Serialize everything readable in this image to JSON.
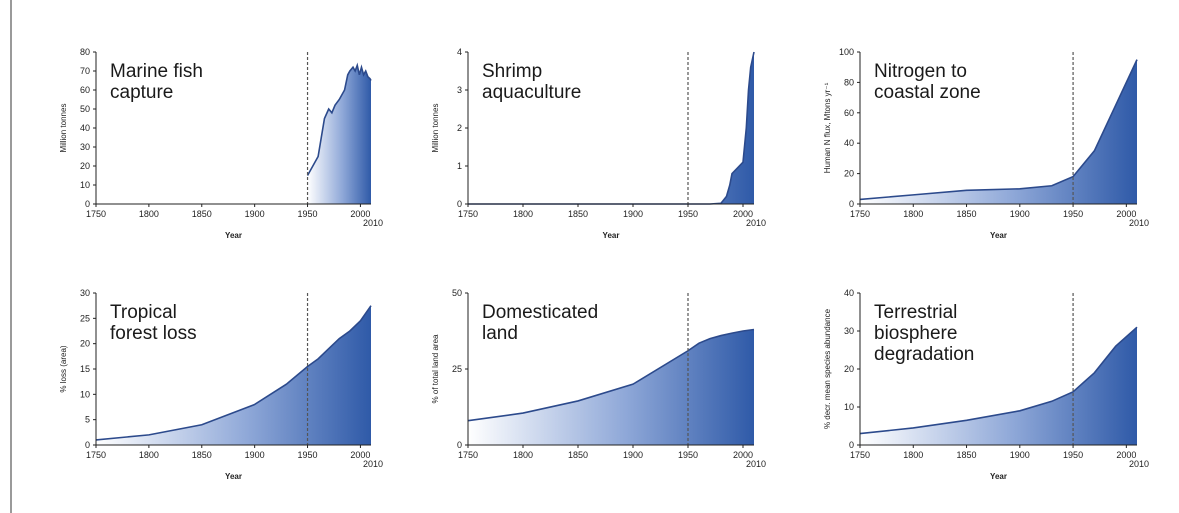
{
  "chart_data": [
    {
      "type": "area",
      "title": "Marine fish capture",
      "title_lines": [
        "Marine fish",
        "capture"
      ],
      "xlabel": "Year",
      "ylabel": "Million tonnes",
      "xlim": [
        1750,
        2010
      ],
      "ylim": [
        0,
        80
      ],
      "xticks": [
        "1750",
        "1800",
        "1850",
        "1900",
        "1950",
        "2000"
      ],
      "end_tick": "2010",
      "yticks": [
        "0",
        "10",
        "20",
        "30",
        "40",
        "50",
        "60",
        "70",
        "80"
      ],
      "marker_line_year": 1950,
      "x": [
        1950,
        1955,
        1960,
        1963,
        1966,
        1970,
        1973,
        1976,
        1980,
        1985,
        1988,
        1990,
        1993,
        1995,
        1997,
        1999,
        2001,
        2003,
        2005,
        2007,
        2009,
        2010
      ],
      "values": [
        15,
        20,
        25,
        35,
        45,
        50,
        48,
        52,
        55,
        60,
        68,
        70,
        72,
        70,
        73,
        68,
        72,
        68,
        70,
        67,
        66,
        65
      ],
      "line_color": "#2c4a8c",
      "fill_color": "#2f5aa8"
    },
    {
      "type": "area",
      "title": "Shrimp aquaculture",
      "title_lines": [
        "Shrimp",
        "aquaculture"
      ],
      "xlabel": "Year",
      "ylabel": "Million tonnes",
      "xlim": [
        1750,
        2010
      ],
      "ylim": [
        0,
        4
      ],
      "xticks": [
        "1750",
        "1800",
        "1850",
        "1900",
        "1950",
        "2000"
      ],
      "end_tick": "2010",
      "yticks": [
        "0",
        "1",
        "2",
        "3",
        "4"
      ],
      "marker_line_year": 1950,
      "x": [
        1750,
        1970,
        1980,
        1985,
        1988,
        1990,
        1995,
        2000,
        2003,
        2005,
        2007,
        2010
      ],
      "values": [
        0,
        0,
        0.02,
        0.2,
        0.5,
        0.8,
        0.95,
        1.1,
        2.0,
        3.0,
        3.6,
        4.0
      ],
      "line_color": "#2c4a8c",
      "fill_color": "#2f5aa8"
    },
    {
      "type": "area",
      "title": "Nitrogen to coastal zone",
      "title_lines": [
        "Nitrogen to",
        "coastal zone"
      ],
      "xlabel": "Year",
      "ylabel": "Human N flux, Mtons yr⁻¹",
      "xlim": [
        1750,
        2010
      ],
      "ylim": [
        0,
        100
      ],
      "xticks": [
        "1750",
        "1800",
        "1850",
        "1900",
        "1950",
        "2000"
      ],
      "end_tick": "2010",
      "yticks": [
        "0",
        "20",
        "40",
        "60",
        "80",
        "100"
      ],
      "marker_line_year": 1950,
      "x": [
        1750,
        1800,
        1850,
        1900,
        1930,
        1950,
        1970,
        1990,
        2010
      ],
      "values": [
        3,
        6,
        9,
        10,
        12,
        18,
        35,
        65,
        95
      ],
      "line_color": "#2c4a8c",
      "fill_color": "#2f5aa8"
    },
    {
      "type": "area",
      "title": "Tropical forest loss",
      "title_lines": [
        "Tropical",
        "forest loss"
      ],
      "xlabel": "Year",
      "ylabel": "% loss (area)",
      "xlim": [
        1750,
        2010
      ],
      "ylim": [
        0,
        30
      ],
      "xticks": [
        "1750",
        "1800",
        "1850",
        "1900",
        "1950",
        "2000"
      ],
      "end_tick": "2010",
      "yticks": [
        "0",
        "5",
        "10",
        "15",
        "20",
        "25",
        "30"
      ],
      "marker_line_year": 1950,
      "x": [
        1750,
        1800,
        1850,
        1900,
        1930,
        1950,
        1960,
        1970,
        1980,
        1990,
        2000,
        2010
      ],
      "values": [
        1,
        2,
        4,
        8,
        12,
        15.5,
        17,
        19,
        21,
        22.5,
        24.5,
        27.5
      ],
      "line_color": "#2c4a8c",
      "fill_color": "#2f5aa8"
    },
    {
      "type": "area",
      "title": "Domesticated land",
      "title_lines": [
        "Domesticated",
        "land"
      ],
      "xlabel": "",
      "ylabel": "% of total land area",
      "xlim": [
        1750,
        2010
      ],
      "ylim": [
        0,
        50
      ],
      "xticks": [
        "1750",
        "1800",
        "1850",
        "1900",
        "1950",
        "2000"
      ],
      "end_tick": "2010",
      "yticks": [
        "0",
        "25",
        "50"
      ],
      "marker_line_year": 1950,
      "x": [
        1750,
        1800,
        1850,
        1900,
        1950,
        1960,
        1970,
        1980,
        1990,
        2000,
        2010
      ],
      "values": [
        8,
        10.5,
        14.5,
        20,
        31,
        33.5,
        35,
        36,
        36.8,
        37.5,
        38
      ],
      "line_color": "#2c4a8c",
      "fill_color": "#2f5aa8"
    },
    {
      "type": "area",
      "title": "Terrestrial biosphere degradation",
      "title_lines": [
        "Terrestrial",
        "biosphere",
        "degradation"
      ],
      "xlabel": "Year",
      "ylabel": "% decr. mean species abundance",
      "xlim": [
        1750,
        2010
      ],
      "ylim": [
        0,
        40
      ],
      "xticks": [
        "1750",
        "1800",
        "1850",
        "1900",
        "1950",
        "2000"
      ],
      "end_tick": "2010",
      "yticks": [
        "0",
        "10",
        "20",
        "30",
        "40"
      ],
      "marker_line_year": 1950,
      "x": [
        1750,
        1800,
        1850,
        1900,
        1930,
        1950,
        1970,
        1990,
        2010
      ],
      "values": [
        3,
        4.5,
        6.5,
        9,
        11.5,
        14,
        19,
        26,
        31
      ],
      "line_color": "#2c4a8c",
      "fill_color": "#2f5aa8"
    }
  ]
}
